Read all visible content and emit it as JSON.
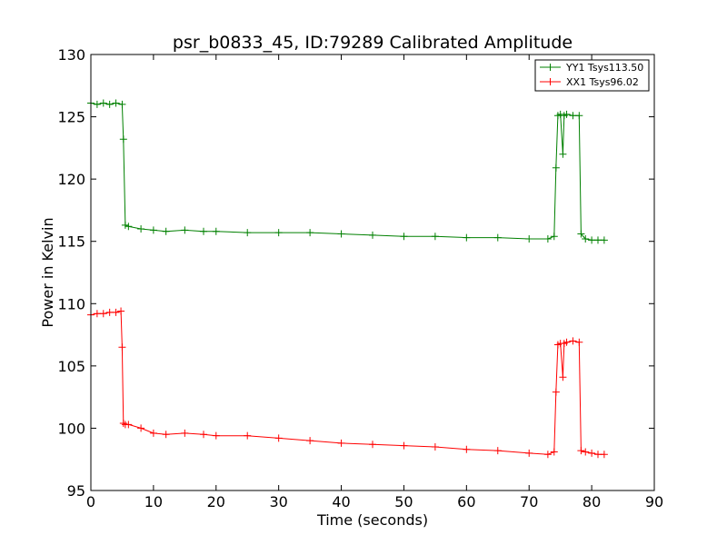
{
  "chart_data": {
    "type": "line",
    "title": "psr_b0833_45, ID:79289 Calibrated Amplitude",
    "xlabel": "Time (seconds)",
    "ylabel": "Power in Kelvin",
    "xlim": [
      0,
      90
    ],
    "ylim": [
      95,
      130
    ],
    "xticks": [
      0,
      10,
      20,
      30,
      40,
      50,
      60,
      70,
      80,
      90
    ],
    "yticks": [
      95,
      100,
      105,
      110,
      115,
      120,
      125,
      130
    ],
    "legend_position": "top-right",
    "grid": false,
    "series": [
      {
        "name": "YY1 Tsys113.50",
        "color": "#008000",
        "marker": "+",
        "x": [
          0,
          1,
          2,
          3,
          4,
          5,
          5.2,
          5.5,
          6,
          8,
          10,
          12,
          15,
          18,
          20,
          25,
          30,
          35,
          40,
          45,
          50,
          55,
          60,
          65,
          70,
          73,
          74,
          74.3,
          74.6,
          75,
          75.4,
          75.6,
          76,
          77,
          78,
          78.3,
          79,
          80,
          81,
          82
        ],
        "values": [
          126.1,
          126.0,
          126.1,
          126.0,
          126.1,
          126.0,
          123.2,
          116.3,
          116.2,
          116.0,
          115.9,
          115.8,
          115.9,
          115.8,
          115.8,
          115.7,
          115.7,
          115.7,
          115.6,
          115.5,
          115.4,
          115.4,
          115.3,
          115.3,
          115.2,
          115.2,
          115.4,
          120.9,
          125.1,
          125.2,
          122.0,
          125.1,
          125.2,
          125.1,
          125.1,
          115.6,
          115.2,
          115.1,
          115.1,
          115.1
        ]
      },
      {
        "name": "XX1 Tsys96.02",
        "color": "#ff0000",
        "marker": "+",
        "x": [
          0,
          1,
          2,
          3,
          4,
          4.8,
          5,
          5.2,
          5.5,
          6,
          8,
          10,
          12,
          15,
          18,
          20,
          25,
          30,
          35,
          40,
          45,
          50,
          55,
          60,
          65,
          70,
          73,
          74,
          74.3,
          74.6,
          75,
          75.4,
          75.6,
          76,
          77,
          78,
          78.3,
          79,
          80,
          81,
          82
        ],
        "values": [
          109.1,
          109.2,
          109.2,
          109.3,
          109.3,
          109.4,
          106.5,
          100.4,
          100.3,
          100.3,
          100.0,
          99.6,
          99.5,
          99.6,
          99.5,
          99.4,
          99.4,
          99.2,
          99.0,
          98.8,
          98.7,
          98.6,
          98.5,
          98.3,
          98.2,
          98.0,
          97.9,
          98.1,
          102.9,
          106.7,
          106.8,
          104.1,
          106.8,
          106.9,
          107.0,
          106.9,
          98.2,
          98.1,
          98.0,
          97.9,
          97.9
        ]
      }
    ]
  }
}
